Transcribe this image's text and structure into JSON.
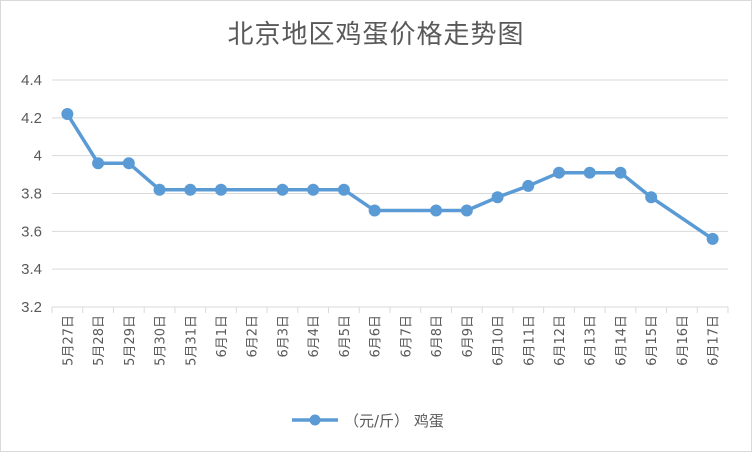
{
  "chart_data": {
    "type": "line",
    "title": "北京地区鸡蛋价格走势图",
    "xlabel": "",
    "ylabel": "",
    "categories": [
      "5月27日",
      "5月28日",
      "5月29日",
      "5月30日",
      "5月31日",
      "6月1日",
      "6月2日",
      "6月3日",
      "6月4日",
      "6月5日",
      "6月6日",
      "6月7日",
      "6月8日",
      "6月9日",
      "6月10日",
      "6月11日",
      "6月12日",
      "6月13日",
      "6月14日",
      "6月15日",
      "6月16日",
      "6月17日"
    ],
    "series": [
      {
        "name": "（元/斤） 鸡蛋",
        "color": "#5b9bd5",
        "values": [
          4.22,
          3.96,
          3.96,
          3.82,
          3.82,
          3.82,
          null,
          3.82,
          3.82,
          3.82,
          3.71,
          null,
          3.71,
          3.71,
          3.78,
          3.84,
          3.91,
          3.91,
          3.91,
          3.78,
          null,
          3.56
        ]
      }
    ],
    "ylim": [
      3.2,
      4.4
    ],
    "yticks": [
      "3.2",
      "3.4",
      "3.6",
      "3.8",
      "4",
      "4.2",
      "4.4"
    ],
    "grid": true,
    "legend_position": "bottom"
  }
}
